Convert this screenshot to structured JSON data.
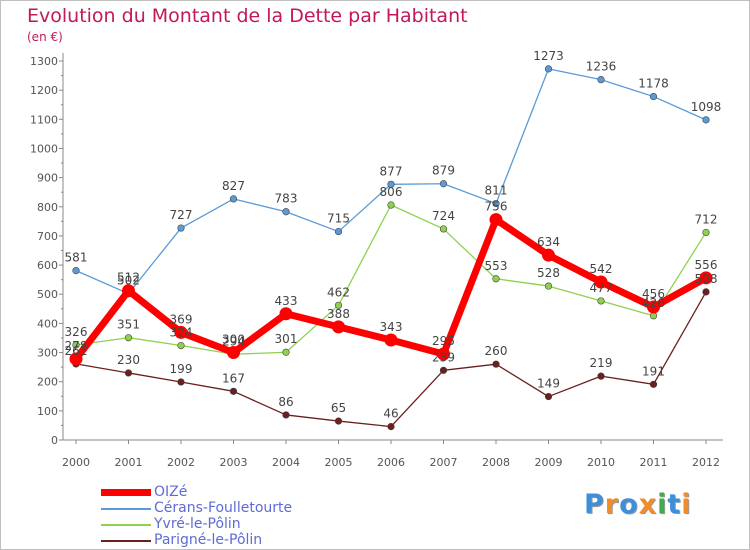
{
  "chart_data": {
    "type": "line",
    "title": "Evolution du Montant de la Dette par Habitant",
    "subtitle": "(en €)",
    "xlabel": "",
    "ylabel": "(en €)",
    "ylim": [
      0,
      1300
    ],
    "y_ticks": [
      0,
      100,
      200,
      300,
      400,
      500,
      600,
      700,
      800,
      900,
      1000,
      1100,
      1200,
      1300
    ],
    "grid": false,
    "categories": [
      "2000",
      "2001",
      "2002",
      "2003",
      "2004",
      "2005",
      "2006",
      "2007",
      "2008",
      "2009",
      "2010",
      "2011",
      "2012"
    ],
    "series": [
      {
        "name": "Parigné-le-Pôlin",
        "color": "#6b1f1f",
        "values": [
          261,
          230,
          199,
          167,
          86,
          65,
          46,
          239,
          260,
          149,
          219,
          191,
          508
        ]
      },
      {
        "name": "Yvré-le-Pôlin",
        "color": "#8fd14f",
        "values": [
          326,
          351,
          324,
          294,
          301,
          462,
          806,
          724,
          553,
          528,
          477,
          426,
          712
        ]
      },
      {
        "name": "Cérans-Foulletourte",
        "color": "#5b9bd5",
        "values": [
          581,
          502,
          727,
          827,
          783,
          715,
          877,
          879,
          811,
          1273,
          1236,
          1178,
          1098
        ]
      },
      {
        "name": "OIZé",
        "color": "#ff0000",
        "values": [
          278,
          512,
          369,
          300,
          433,
          388,
          343,
          295,
          756,
          634,
          542,
          456,
          556
        ]
      }
    ],
    "legend_position": "bottom-left"
  },
  "legend": [
    {
      "name": "OIZé",
      "color": "#ff0000"
    },
    {
      "name": "Cérans-Foulletourte",
      "color": "#5b9bd5"
    },
    {
      "name": "Yvré-le-Pôlin",
      "color": "#8fd14f"
    },
    {
      "name": "Parigné-le-Pôlin",
      "color": "#6b1f1f"
    }
  ],
  "logo": {
    "text": "Proxiti",
    "letters": [
      {
        "ch": "P",
        "color": "#3d8fd9"
      },
      {
        "ch": "r",
        "color": "#f28c28"
      },
      {
        "ch": "o",
        "color": "#3d8fd9"
      },
      {
        "ch": "x",
        "color": "#f28c28"
      },
      {
        "ch": "i",
        "color": "#3fae49"
      },
      {
        "ch": "t",
        "color": "#3d8fd9"
      },
      {
        "ch": "i",
        "color": "#f28c28"
      }
    ]
  }
}
